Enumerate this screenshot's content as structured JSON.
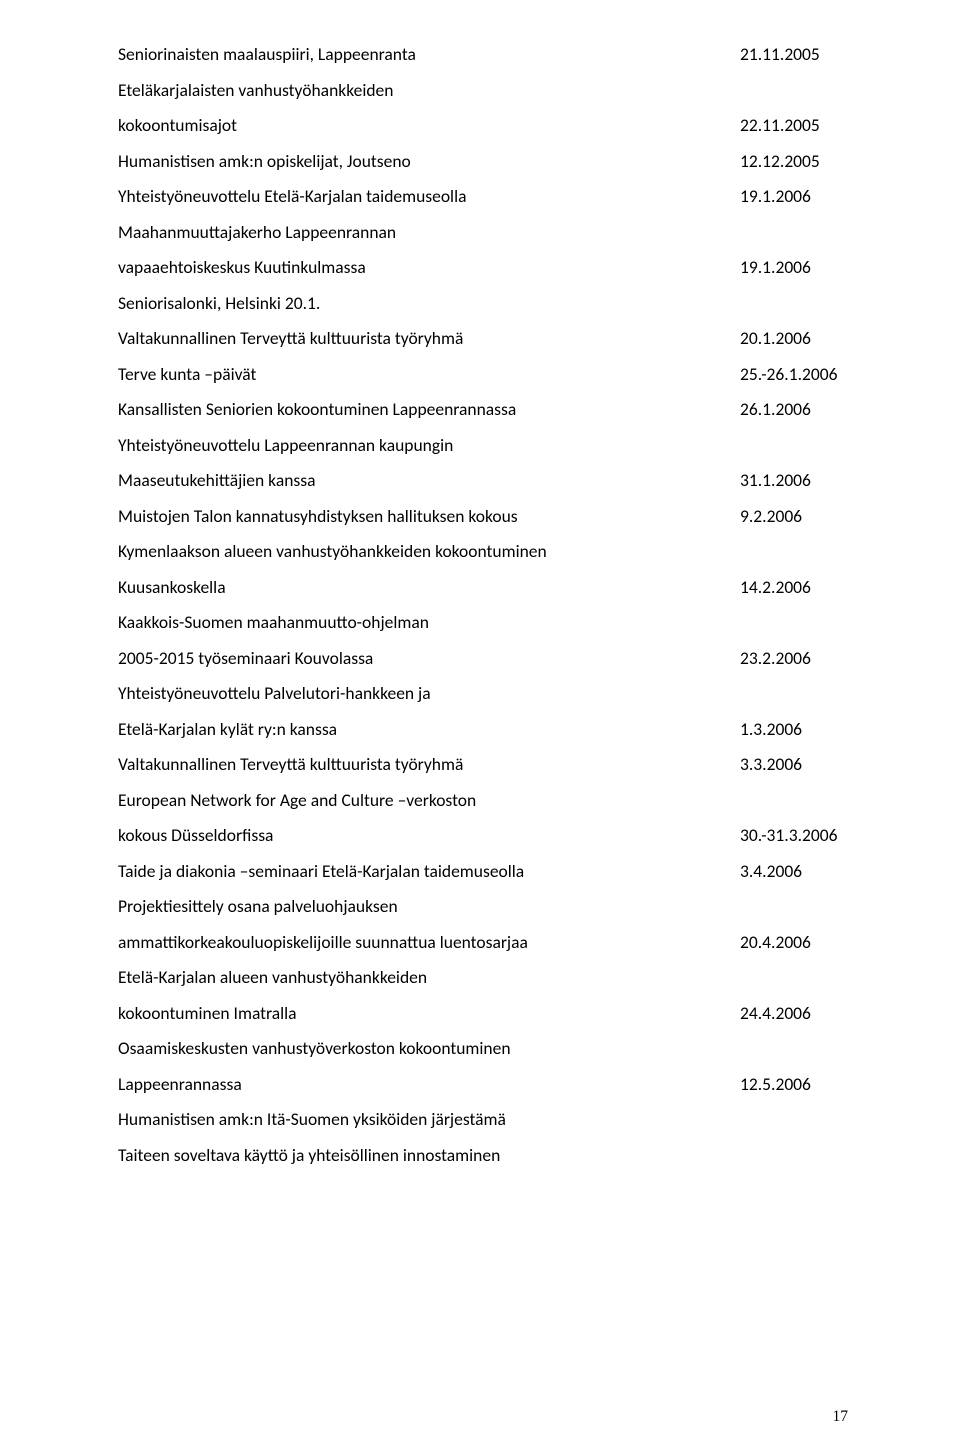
{
  "rows": [
    {
      "left": "Seniorinaisten maalauspiiri, Lappeenranta",
      "right": "21.11.2005"
    },
    {
      "left": "Eteläkarjalaisten vanhustyöhankkeiden",
      "right": ""
    },
    {
      "left": "kokoontumisajot",
      "right": "22.11.2005"
    },
    {
      "left": "Humanistisen amk:n opiskelijat, Joutseno",
      "right": "12.12.2005"
    },
    {
      "left": "Yhteistyöneuvottelu Etelä-Karjalan taidemuseolla",
      "right": "19.1.2006"
    },
    {
      "left": "Maahanmuuttajakerho Lappeenrannan",
      "right": ""
    },
    {
      "left": "vapaaehtoiskeskus Kuutinkulmassa",
      "right": "19.1.2006"
    },
    {
      "left": "Seniorisalonki, Helsinki 20.1.",
      "right": ""
    },
    {
      "left": "Valtakunnallinen Terveyttä kulttuurista työryhmä",
      "right": "20.1.2006"
    },
    {
      "left": "Terve kunta –päivät",
      "right": "25.-26.1.2006"
    },
    {
      "left": "Kansallisten Seniorien kokoontuminen Lappeenrannassa",
      "right": "26.1.2006"
    },
    {
      "left": "Yhteistyöneuvottelu Lappeenrannan kaupungin",
      "right": ""
    },
    {
      "left": "Maaseutukehittäjien kanssa",
      "right": "31.1.2006"
    },
    {
      "left": "Muistojen Talon kannatusyhdistyksen hallituksen kokous",
      "right": " 9.2.2006"
    },
    {
      "left": "Kymenlaakson alueen vanhustyöhankkeiden kokoontuminen",
      "right": ""
    },
    {
      "left": "Kuusankoskella",
      "right": "14.2.2006"
    },
    {
      "left": "Kaakkois-Suomen maahanmuutto-ohjelman",
      "right": ""
    },
    {
      "left": "2005-2015 työseminaari Kouvolassa",
      "right": "23.2.2006"
    },
    {
      "left": "Yhteistyöneuvottelu Palvelutori-hankkeen ja",
      "right": ""
    },
    {
      "left": "Etelä-Karjalan kylät ry:n kanssa",
      "right": "1.3.2006"
    },
    {
      "left": "Valtakunnallinen Terveyttä kulttuurista työryhmä",
      "right": "3.3.2006"
    },
    {
      "left": "European Network for Age and Culture –verkoston",
      "right": ""
    },
    {
      "left": "kokous Düsseldorfissa",
      "right": "30.-31.3.2006"
    },
    {
      "left": "Taide ja diakonia –seminaari Etelä-Karjalan taidemuseolla",
      "right": "3.4.2006"
    },
    {
      "left": "Projektiesittely osana palveluohjauksen",
      "right": ""
    },
    {
      "left": "ammattikorkeakouluopiskelijoille suunnattua luentosarjaa",
      "right": "20.4.2006"
    },
    {
      "left": "Etelä-Karjalan alueen vanhustyöhankkeiden",
      "right": ""
    },
    {
      "left": "kokoontuminen Imatralla",
      "right": "24.4.2006"
    },
    {
      "left": "Osaamiskeskusten vanhustyöverkoston kokoontuminen",
      "right": ""
    },
    {
      "left": "Lappeenrannassa",
      "right": "12.5.2006"
    },
    {
      "left": "Humanistisen amk:n Itä-Suomen yksiköiden järjestämä",
      "right": ""
    },
    {
      "left": "Taiteen soveltava käyttö ja yhteisöllinen innostaminen",
      "right": ""
    }
  ],
  "pageNumber": "17"
}
